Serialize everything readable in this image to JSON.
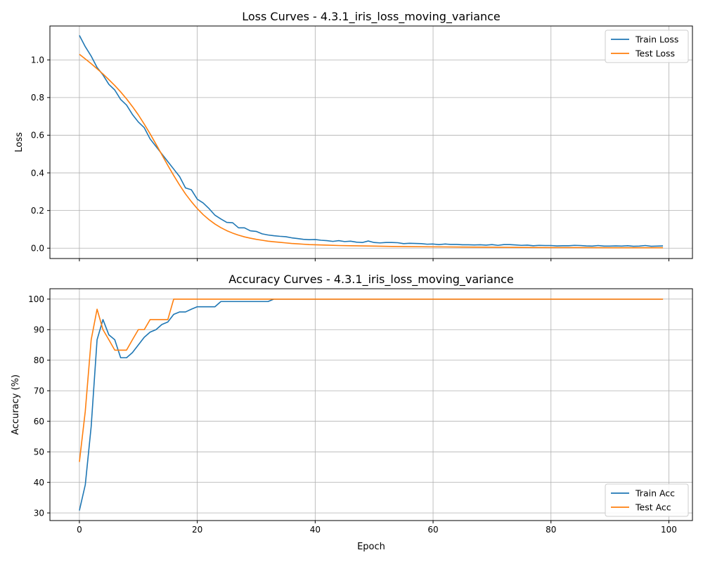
{
  "colors": {
    "train": "#1f77b4",
    "test": "#ff7f0e"
  },
  "chart_data": [
    {
      "type": "line",
      "title": "Loss Curves - 4.3.1_iris_loss_moving_variance",
      "xlabel": "",
      "ylabel": "Loss",
      "xlim": [
        -5,
        104
      ],
      "ylim": [
        -0.055,
        1.18
      ],
      "xticks": [
        0,
        20,
        40,
        60,
        80,
        100
      ],
      "xtick_labels_visible": false,
      "yticks": [
        0.0,
        0.2,
        0.4,
        0.6,
        0.8,
        1.0
      ],
      "ytick_labels": [
        "0.0",
        "0.2",
        "0.4",
        "0.6",
        "0.8",
        "1.0"
      ],
      "grid": true,
      "legend": "top-right",
      "series": [
        {
          "name": "Train Loss",
          "color": "#1f77b4",
          "points": [
            [
              0,
              1.13
            ],
            [
              1,
              1.07
            ],
            [
              2,
              1.02
            ],
            [
              3,
              0.96
            ],
            [
              4,
              0.92
            ],
            [
              5,
              0.87
            ],
            [
              6,
              0.84
            ],
            [
              7,
              0.79
            ],
            [
              8,
              0.76
            ],
            [
              9,
              0.71
            ],
            [
              10,
              0.67
            ],
            [
              11,
              0.64
            ],
            [
              12,
              0.58
            ],
            [
              13,
              0.54
            ],
            [
              14,
              0.5
            ],
            [
              15,
              0.46
            ],
            [
              16,
              0.42
            ],
            [
              17,
              0.38
            ],
            [
              18,
              0.32
            ],
            [
              19,
              0.31
            ],
            [
              20,
              0.26
            ],
            [
              21,
              0.24
            ],
            [
              22,
              0.21
            ],
            [
              23,
              0.175
            ],
            [
              24,
              0.155
            ],
            [
              25,
              0.137
            ],
            [
              26,
              0.135
            ],
            [
              27,
              0.108
            ],
            [
              28,
              0.108
            ],
            [
              29,
              0.092
            ],
            [
              30,
              0.089
            ],
            [
              31,
              0.076
            ],
            [
              32,
              0.07
            ],
            [
              33,
              0.066
            ],
            [
              34,
              0.063
            ],
            [
              35,
              0.061
            ],
            [
              36,
              0.055
            ],
            [
              37,
              0.051
            ],
            [
              38,
              0.047
            ],
            [
              39,
              0.045
            ],
            [
              40,
              0.046
            ],
            [
              41,
              0.042
            ],
            [
              42,
              0.04
            ],
            [
              43,
              0.036
            ],
            [
              44,
              0.04
            ],
            [
              45,
              0.035
            ],
            [
              46,
              0.037
            ],
            [
              47,
              0.032
            ],
            [
              48,
              0.03
            ],
            [
              49,
              0.038
            ],
            [
              50,
              0.03
            ],
            [
              51,
              0.028
            ],
            [
              52,
              0.03
            ],
            [
              53,
              0.03
            ],
            [
              54,
              0.029
            ],
            [
              55,
              0.024
            ],
            [
              56,
              0.026
            ],
            [
              57,
              0.025
            ],
            [
              58,
              0.024
            ],
            [
              59,
              0.021
            ],
            [
              60,
              0.022
            ],
            [
              61,
              0.019
            ],
            [
              62,
              0.022
            ],
            [
              63,
              0.02
            ],
            [
              64,
              0.02
            ],
            [
              65,
              0.018
            ],
            [
              66,
              0.018
            ],
            [
              67,
              0.017
            ],
            [
              68,
              0.018
            ],
            [
              69,
              0.016
            ],
            [
              70,
              0.019
            ],
            [
              71,
              0.015
            ],
            [
              72,
              0.019
            ],
            [
              73,
              0.019
            ],
            [
              74,
              0.017
            ],
            [
              75,
              0.015
            ],
            [
              76,
              0.016
            ],
            [
              77,
              0.013
            ],
            [
              78,
              0.015
            ],
            [
              79,
              0.014
            ],
            [
              80,
              0.014
            ],
            [
              81,
              0.012
            ],
            [
              82,
              0.013
            ],
            [
              83,
              0.013
            ],
            [
              84,
              0.015
            ],
            [
              85,
              0.014
            ],
            [
              86,
              0.012
            ],
            [
              87,
              0.011
            ],
            [
              88,
              0.014
            ],
            [
              89,
              0.011
            ],
            [
              90,
              0.011
            ],
            [
              91,
              0.012
            ],
            [
              92,
              0.011
            ],
            [
              93,
              0.013
            ],
            [
              94,
              0.01
            ],
            [
              95,
              0.011
            ],
            [
              96,
              0.014
            ],
            [
              97,
              0.01
            ],
            [
              98,
              0.011
            ],
            [
              99,
              0.012
            ]
          ]
        },
        {
          "name": "Test Loss",
          "color": "#ff7f0e",
          "points": [
            [
              0,
              1.03
            ],
            [
              1,
              1.005
            ],
            [
              2,
              0.98
            ],
            [
              3,
              0.953
            ],
            [
              4,
              0.925
            ],
            [
              5,
              0.895
            ],
            [
              6,
              0.864
            ],
            [
              7,
              0.83
            ],
            [
              8,
              0.793
            ],
            [
              9,
              0.752
            ],
            [
              10,
              0.708
            ],
            [
              11,
              0.659
            ],
            [
              12,
              0.607
            ],
            [
              13,
              0.552
            ],
            [
              14,
              0.496
            ],
            [
              15,
              0.44
            ],
            [
              16,
              0.386
            ],
            [
              17,
              0.335
            ],
            [
              18,
              0.288
            ],
            [
              19,
              0.247
            ],
            [
              20,
              0.21
            ],
            [
              21,
              0.178
            ],
            [
              22,
              0.151
            ],
            [
              23,
              0.128
            ],
            [
              24,
              0.109
            ],
            [
              25,
              0.093
            ],
            [
              26,
              0.08
            ],
            [
              27,
              0.069
            ],
            [
              28,
              0.06
            ],
            [
              29,
              0.053
            ],
            [
              30,
              0.047
            ],
            [
              31,
              0.042
            ],
            [
              32,
              0.037
            ],
            [
              33,
              0.034
            ],
            [
              34,
              0.031
            ],
            [
              35,
              0.028
            ],
            [
              36,
              0.025
            ],
            [
              37,
              0.023
            ],
            [
              38,
              0.021
            ],
            [
              39,
              0.019
            ],
            [
              40,
              0.018
            ],
            [
              42,
              0.016
            ],
            [
              44,
              0.014
            ],
            [
              46,
              0.013
            ],
            [
              48,
              0.012
            ],
            [
              50,
              0.011
            ],
            [
              53,
              0.009
            ],
            [
              56,
              0.008
            ],
            [
              60,
              0.007
            ],
            [
              65,
              0.006
            ],
            [
              70,
              0.005
            ],
            [
              75,
              0.004
            ],
            [
              80,
              0.003
            ],
            [
              85,
              0.003
            ],
            [
              90,
              0.002
            ],
            [
              95,
              0.002
            ],
            [
              99,
              0.002
            ]
          ]
        }
      ]
    },
    {
      "type": "line",
      "title": "Accuracy Curves - 4.3.1_iris_loss_moving_variance",
      "xlabel": "Epoch",
      "ylabel": "Accuracy (%)",
      "xlim": [
        -5,
        104
      ],
      "ylim": [
        27.5,
        103.4
      ],
      "xticks": [
        0,
        20,
        40,
        60,
        80,
        100
      ],
      "xtick_labels": [
        "0",
        "20",
        "40",
        "60",
        "80",
        "100"
      ],
      "yticks": [
        30,
        40,
        50,
        60,
        70,
        80,
        90,
        100
      ],
      "ytick_labels": [
        "30",
        "40",
        "50",
        "60",
        "70",
        "80",
        "90",
        "100"
      ],
      "grid": true,
      "legend": "bottom-right",
      "series": [
        {
          "name": "Train Acc",
          "color": "#1f77b4",
          "points": [
            [
              0,
              30.8
            ],
            [
              1,
              39.2
            ],
            [
              2,
              58.3
            ],
            [
              3,
              86.7
            ],
            [
              4,
              93.3
            ],
            [
              5,
              88.3
            ],
            [
              6,
              86.7
            ],
            [
              7,
              80.8
            ],
            [
              8,
              80.8
            ],
            [
              9,
              82.5
            ],
            [
              10,
              85.0
            ],
            [
              11,
              87.5
            ],
            [
              12,
              89.2
            ],
            [
              13,
              90.0
            ],
            [
              14,
              91.7
            ],
            [
              15,
              92.5
            ],
            [
              16,
              95.0
            ],
            [
              17,
              95.8
            ],
            [
              18,
              95.8
            ],
            [
              19,
              96.7
            ],
            [
              20,
              97.5
            ],
            [
              21,
              97.5
            ],
            [
              22,
              97.5
            ],
            [
              23,
              97.5
            ],
            [
              24,
              99.2
            ],
            [
              25,
              99.2
            ],
            [
              26,
              99.2
            ],
            [
              27,
              99.2
            ],
            [
              28,
              99.2
            ],
            [
              29,
              99.2
            ],
            [
              30,
              99.2
            ],
            [
              31,
              99.2
            ],
            [
              32,
              99.2
            ],
            [
              33,
              100
            ],
            [
              99,
              100
            ]
          ]
        },
        {
          "name": "Test Acc",
          "color": "#ff7f0e",
          "points": [
            [
              0,
              46.7
            ],
            [
              1,
              63.3
            ],
            [
              2,
              86.7
            ],
            [
              3,
              96.7
            ],
            [
              4,
              90.0
            ],
            [
              5,
              86.7
            ],
            [
              6,
              83.3
            ],
            [
              7,
              83.3
            ],
            [
              8,
              83.3
            ],
            [
              9,
              86.7
            ],
            [
              10,
              90.0
            ],
            [
              11,
              90.0
            ],
            [
              12,
              93.3
            ],
            [
              13,
              93.3
            ],
            [
              14,
              93.3
            ],
            [
              15,
              93.3
            ],
            [
              16,
              100
            ],
            [
              99,
              100
            ]
          ]
        }
      ]
    }
  ]
}
